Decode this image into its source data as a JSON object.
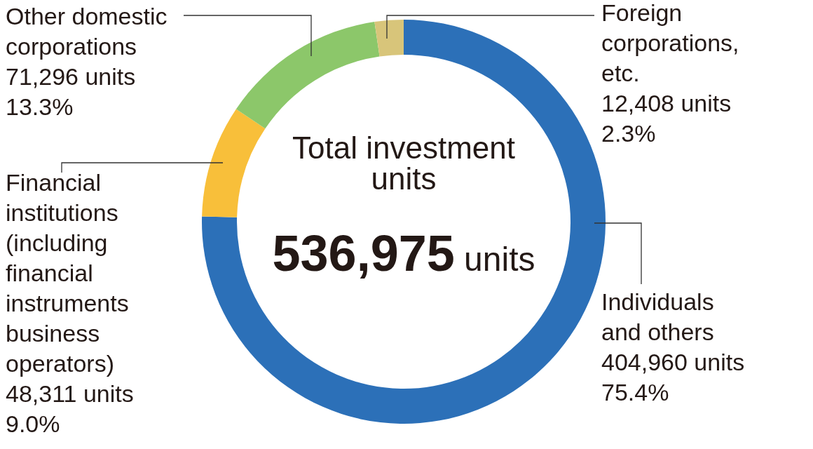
{
  "chart_data": {
    "type": "donut",
    "categories": [
      "Individuals and others",
      "Financial institutions (including financial instruments business operators)",
      "Other domestic corporations",
      "Foreign corporations, etc."
    ],
    "values": [
      404960,
      48311,
      71296,
      12408
    ],
    "colors": [
      "#2c70b8",
      "#f8bf3a",
      "#8cc76a",
      "#d8c57a"
    ],
    "value_labels": [
      "404,960 units\n75.4%",
      "48,311 units\n9.0%",
      "71,296 units\n13.3%",
      "12,408 units\n2.3%"
    ],
    "annotations": [
      "Total investment units",
      "536,975 units"
    ]
  }
}
